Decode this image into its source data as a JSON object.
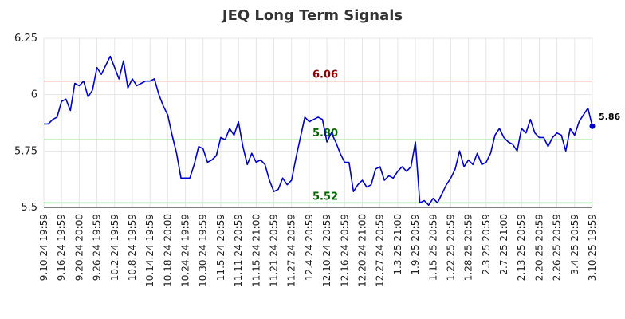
{
  "chart_data": {
    "type": "line",
    "title": "JEQ Long Term Signals",
    "xlabel": "",
    "ylabel": "",
    "ylim": [
      5.5,
      6.25
    ],
    "yticks": [
      "6.25",
      "6",
      "5.75",
      "5.5"
    ],
    "ytick_values": [
      6.25,
      6.0,
      5.75,
      5.5
    ],
    "xtick_labels": [
      "9.10.24 19:59",
      "9.16.24 19:59",
      "9.20.24 20:00",
      "9.26.24 19:59",
      "10.2.24 19:59",
      "10.8.24 19:59",
      "10.14.24 19:59",
      "10.18.24 20:00",
      "10.24.24 19:59",
      "10.30.24 19:59",
      "11.5.24 20:59",
      "11.11.24 20:59",
      "11.15.24 21:00",
      "11.21.24 20:59",
      "11.27.24 20:59",
      "12.4.24 20:59",
      "12.10.24 20:59",
      "12.16.24 20:59",
      "12.20.24 21:00",
      "12.27.24 20:59",
      "1.3.25 21:00",
      "1.9.25 20:59",
      "1.15.25 20:59",
      "1.22.25 20:59",
      "1.28.25 20:59",
      "2.3.25 20:59",
      "2.7.25 21:00",
      "2.13.25 20:59",
      "2.20.25 20:59",
      "2.26.25 20:59",
      "3.4.25 20:59",
      "3.10.25 19:59"
    ],
    "grid": true,
    "levels": [
      {
        "value": 6.06,
        "label": "6.06",
        "line_color": "#ffb3b3",
        "text_color": "#8b0000"
      },
      {
        "value": 5.8,
        "label": "5.80",
        "line_color": "#90e090",
        "text_color": "#006400"
      },
      {
        "value": 5.52,
        "label": "5.52",
        "line_color": "#90e090",
        "text_color": "#006400"
      }
    ],
    "last_value_label": "5.86",
    "series": [
      {
        "color": "#0000cc",
        "values": [
          5.87,
          5.87,
          5.89,
          5.9,
          5.97,
          5.98,
          5.93,
          6.05,
          6.04,
          6.06,
          5.99,
          6.02,
          6.12,
          6.09,
          6.13,
          6.17,
          6.12,
          6.07,
          6.15,
          6.03,
          6.07,
          6.04,
          6.05,
          6.06,
          6.06,
          6.07,
          6.0,
          5.95,
          5.91,
          5.82,
          5.74,
          5.63,
          5.63,
          5.63,
          5.69,
          5.77,
          5.76,
          5.7,
          5.71,
          5.73,
          5.81,
          5.8,
          5.85,
          5.82,
          5.88,
          5.77,
          5.69,
          5.74,
          5.7,
          5.71,
          5.69,
          5.62,
          5.57,
          5.58,
          5.63,
          5.6,
          5.62,
          5.72,
          5.81,
          5.9,
          5.88,
          5.89,
          5.9,
          5.89,
          5.79,
          5.83,
          5.79,
          5.74,
          5.7,
          5.7,
          5.57,
          5.6,
          5.62,
          5.59,
          5.6,
          5.67,
          5.68,
          5.62,
          5.64,
          5.63,
          5.66,
          5.68,
          5.66,
          5.68,
          5.79,
          5.52,
          5.53,
          5.51,
          5.54,
          5.52,
          5.56,
          5.6,
          5.63,
          5.67,
          5.75,
          5.68,
          5.71,
          5.69,
          5.74,
          5.69,
          5.7,
          5.74,
          5.82,
          5.85,
          5.81,
          5.79,
          5.78,
          5.75,
          5.85,
          5.83,
          5.89,
          5.83,
          5.81,
          5.81,
          5.77,
          5.81,
          5.83,
          5.82,
          5.75,
          5.85,
          5.82,
          5.88,
          5.91,
          5.94,
          5.86
        ]
      }
    ]
  }
}
